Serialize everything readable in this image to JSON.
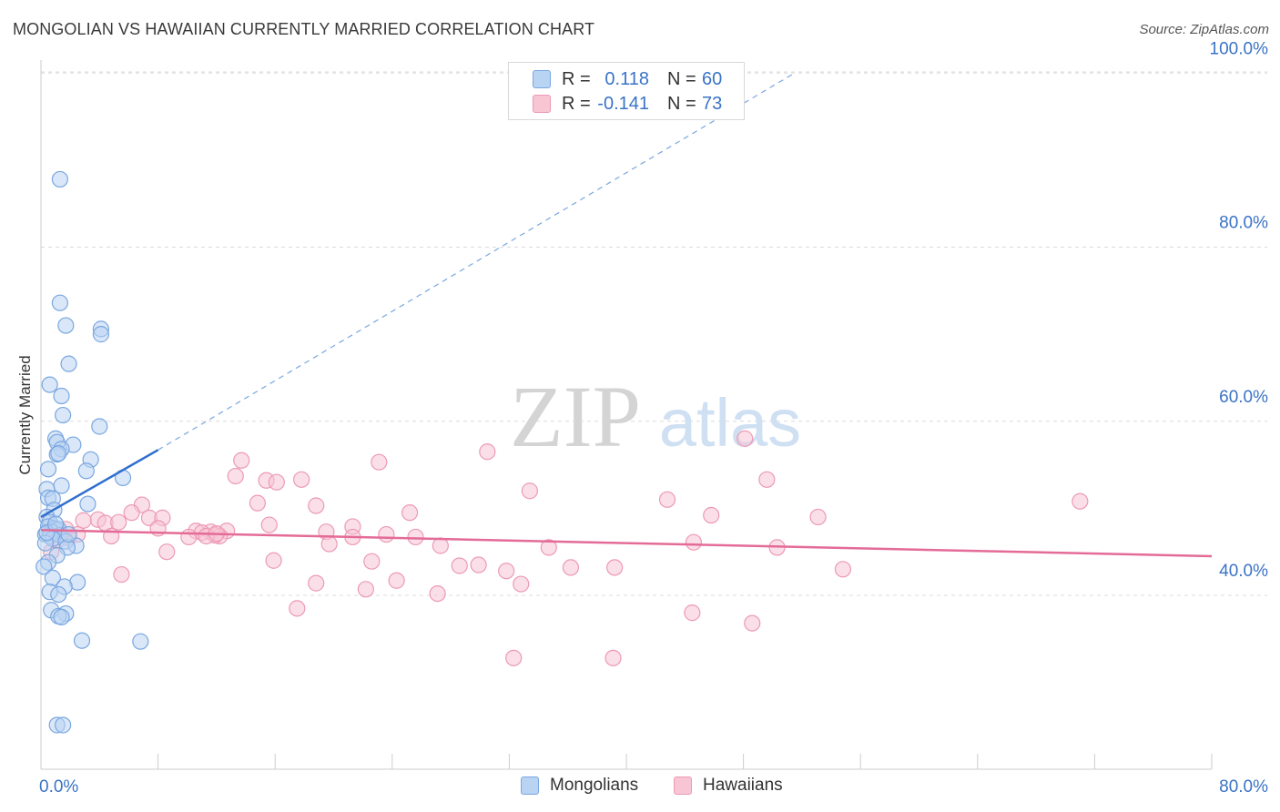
{
  "header": {
    "title": "MONGOLIAN VS HAWAIIAN CURRENTLY MARRIED CORRELATION CHART",
    "source": "Source: ZipAtlas.com"
  },
  "watermark": {
    "zip": "ZIP",
    "atlas": "atlas"
  },
  "legend": {
    "rows": [
      {
        "r_label": "R =",
        "r_value": "0.118",
        "n_label": "N =",
        "n_value": "60"
      },
      {
        "r_label": "R =",
        "r_value": "-0.141",
        "n_label": "N =",
        "n_value": "73"
      }
    ]
  },
  "bottom_legend": {
    "mongolians": "Mongolians",
    "hawaiians": "Hawaiians"
  },
  "colors": {
    "mongolians_fill": "#b9d3f2",
    "mongolians_stroke": "#7aa7e0",
    "mongolians_line": "#2f6fcf",
    "hawaiians_fill": "#f8c5d5",
    "hawaiians_stroke": "#ec9ab4",
    "hawaiians_line": "#e46b97",
    "tick_label": "#3a73c6",
    "grid": "#dcdcdc"
  },
  "chart_data": {
    "type": "scatter",
    "title": "MONGOLIAN VS HAWAIIAN CURRENTLY MARRIED CORRELATION CHART",
    "xlabel": "",
    "ylabel": "Currently Married",
    "xlim": [
      0,
      80
    ],
    "ylim": [
      20,
      102
    ],
    "x_tick_labels": [
      "0.0%",
      "80.0%"
    ],
    "y_ticks": [
      40,
      60,
      80,
      100
    ],
    "y_tick_labels": [
      "40.0%",
      "60.0%",
      "80.0%",
      "100.0%"
    ],
    "grid": true,
    "legend_position": "top-center",
    "series": [
      {
        "name": "Mongolians",
        "R": 0.118,
        "N": 60,
        "trend": {
          "x0": 0,
          "y0": 49.0,
          "x1": 8.0,
          "y1": 56.7,
          "dashed_to_x": 51.5,
          "dashed_to_y": 100.0
        },
        "points": [
          [
            1.3,
            87.8
          ],
          [
            1.3,
            73.6
          ],
          [
            1.7,
            71.0
          ],
          [
            4.1,
            70.6
          ],
          [
            4.1,
            70.0
          ],
          [
            1.9,
            66.6
          ],
          [
            0.6,
            64.2
          ],
          [
            1.4,
            62.9
          ],
          [
            1.5,
            60.7
          ],
          [
            4.0,
            59.4
          ],
          [
            1.0,
            58.0
          ],
          [
            1.1,
            57.6
          ],
          [
            2.2,
            57.3
          ],
          [
            1.4,
            56.8
          ],
          [
            1.1,
            56.2
          ],
          [
            1.2,
            56.3
          ],
          [
            3.4,
            55.6
          ],
          [
            3.1,
            54.3
          ],
          [
            0.5,
            54.5
          ],
          [
            5.6,
            53.5
          ],
          [
            1.4,
            52.6
          ],
          [
            0.4,
            52.2
          ],
          [
            0.5,
            51.2
          ],
          [
            0.8,
            51.1
          ],
          [
            3.2,
            50.5
          ],
          [
            0.9,
            49.8
          ],
          [
            0.4,
            49.0
          ],
          [
            0.6,
            48.4
          ],
          [
            0.5,
            47.9
          ],
          [
            0.9,
            47.7
          ],
          [
            1.1,
            47.5
          ],
          [
            1.2,
            47.6
          ],
          [
            0.7,
            47.3
          ],
          [
            0.3,
            47.0
          ],
          [
            0.6,
            46.8
          ],
          [
            1.3,
            46.9
          ],
          [
            0.8,
            46.5
          ],
          [
            1.7,
            46.2
          ],
          [
            0.3,
            46.0
          ],
          [
            2.4,
            45.7
          ],
          [
            1.8,
            45.5
          ],
          [
            1.1,
            44.6
          ],
          [
            0.5,
            43.8
          ],
          [
            0.2,
            43.3
          ],
          [
            0.8,
            42.0
          ],
          [
            2.5,
            41.5
          ],
          [
            1.6,
            41.0
          ],
          [
            0.6,
            40.4
          ],
          [
            1.2,
            40.1
          ],
          [
            0.7,
            38.3
          ],
          [
            1.7,
            37.9
          ],
          [
            1.2,
            37.6
          ],
          [
            1.4,
            37.5
          ],
          [
            2.8,
            34.8
          ],
          [
            6.8,
            34.7
          ],
          [
            1.1,
            25.1
          ],
          [
            1.5,
            25.1
          ],
          [
            0.4,
            47.2
          ],
          [
            1.0,
            48.2
          ],
          [
            1.9,
            47.0
          ]
        ]
      },
      {
        "name": "Hawaiians",
        "R": -0.141,
        "N": 73,
        "trend": {
          "x0": 0,
          "y0": 47.5,
          "x1": 80,
          "y1": 44.5
        },
        "points": [
          [
            48.1,
            58.0
          ],
          [
            30.5,
            56.5
          ],
          [
            13.7,
            55.5
          ],
          [
            23.1,
            55.3
          ],
          [
            13.3,
            53.7
          ],
          [
            15.4,
            53.2
          ],
          [
            17.8,
            53.3
          ],
          [
            16.1,
            53.0
          ],
          [
            49.6,
            53.3
          ],
          [
            33.4,
            52.0
          ],
          [
            42.8,
            51.0
          ],
          [
            71.0,
            50.8
          ],
          [
            6.9,
            50.4
          ],
          [
            14.8,
            50.6
          ],
          [
            18.8,
            50.3
          ],
          [
            25.2,
            49.5
          ],
          [
            45.8,
            49.2
          ],
          [
            53.1,
            49.0
          ],
          [
            6.2,
            49.5
          ],
          [
            3.9,
            48.7
          ],
          [
            2.9,
            48.6
          ],
          [
            7.4,
            48.9
          ],
          [
            8.3,
            48.9
          ],
          [
            4.4,
            48.3
          ],
          [
            5.3,
            48.4
          ],
          [
            15.6,
            48.1
          ],
          [
            21.3,
            47.9
          ],
          [
            8.0,
            47.7
          ],
          [
            10.6,
            47.4
          ],
          [
            11.6,
            47.3
          ],
          [
            11.0,
            47.2
          ],
          [
            12.7,
            47.4
          ],
          [
            19.5,
            47.3
          ],
          [
            23.6,
            47.0
          ],
          [
            12.2,
            46.8
          ],
          [
            11.9,
            46.9
          ],
          [
            10.1,
            46.7
          ],
          [
            11.3,
            46.8
          ],
          [
            12.0,
            47.1
          ],
          [
            21.3,
            46.7
          ],
          [
            25.6,
            46.7
          ],
          [
            4.8,
            46.8
          ],
          [
            1.9,
            46.6
          ],
          [
            1.7,
            47.6
          ],
          [
            44.6,
            46.1
          ],
          [
            19.7,
            45.9
          ],
          [
            27.3,
            45.7
          ],
          [
            34.7,
            45.5
          ],
          [
            50.3,
            45.5
          ],
          [
            8.6,
            45.0
          ],
          [
            15.9,
            44.0
          ],
          [
            22.6,
            43.9
          ],
          [
            28.6,
            43.4
          ],
          [
            29.9,
            43.5
          ],
          [
            31.8,
            42.8
          ],
          [
            36.2,
            43.2
          ],
          [
            39.2,
            43.2
          ],
          [
            54.8,
            43.0
          ],
          [
            5.5,
            42.4
          ],
          [
            24.3,
            41.7
          ],
          [
            18.8,
            41.4
          ],
          [
            32.8,
            41.3
          ],
          [
            22.2,
            40.7
          ],
          [
            27.1,
            40.2
          ],
          [
            17.5,
            38.5
          ],
          [
            44.5,
            38.0
          ],
          [
            48.6,
            36.8
          ],
          [
            32.3,
            32.8
          ],
          [
            39.1,
            32.8
          ],
          [
            0.7,
            45.0
          ],
          [
            1.1,
            46.3
          ],
          [
            0.9,
            47.4
          ],
          [
            2.5,
            47.0
          ]
        ]
      }
    ]
  }
}
